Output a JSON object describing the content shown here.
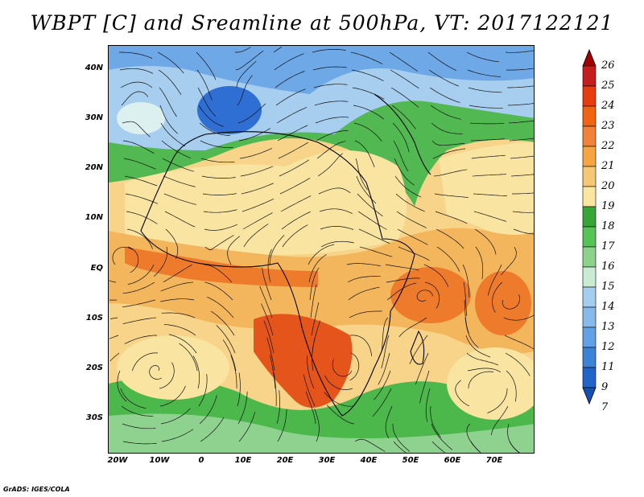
{
  "title": "WBPT [C] and Sreamline at 500hPa, VT: 2017122121",
  "credit": "GrADS: IGES/COLA",
  "map": {
    "lat_labels": [
      "40N",
      "30N",
      "20N",
      "10N",
      "EQ",
      "10S",
      "20S",
      "30S"
    ],
    "lon_labels": [
      "20W",
      "10W",
      "0",
      "10E",
      "20E",
      "30E",
      "40E",
      "50E",
      "60E",
      "70E"
    ]
  },
  "colorbar": {
    "labels": [
      "26",
      "25",
      "24",
      "23",
      "22",
      "21",
      "20",
      "19",
      "18",
      "17",
      "16",
      "15",
      "14",
      "13",
      "12",
      "11",
      "9",
      "7"
    ],
    "colors": [
      "#a00000",
      "#c41e1e",
      "#e63c0f",
      "#f06414",
      "#f0823c",
      "#f5a541",
      "#f5c878",
      "#fae6a0",
      "#37a537",
      "#55c355",
      "#8cd28c",
      "#c8ebd2",
      "#a5cdf0",
      "#87b9eb",
      "#64a0e6",
      "#3c82d7",
      "#2364c8",
      "#1450b4"
    ]
  },
  "legend_colors": {
    "cold_blue": "#2f6fd4",
    "light_blue": "#a7cdef",
    "pale": "#ddf0f0",
    "green": "#41b041",
    "light_green": "#8fd28f",
    "yellow": "#f9e4a2",
    "orange": "#f4b65c",
    "deep_orange": "#ee7a2c",
    "red_orange": "#e5541a"
  }
}
